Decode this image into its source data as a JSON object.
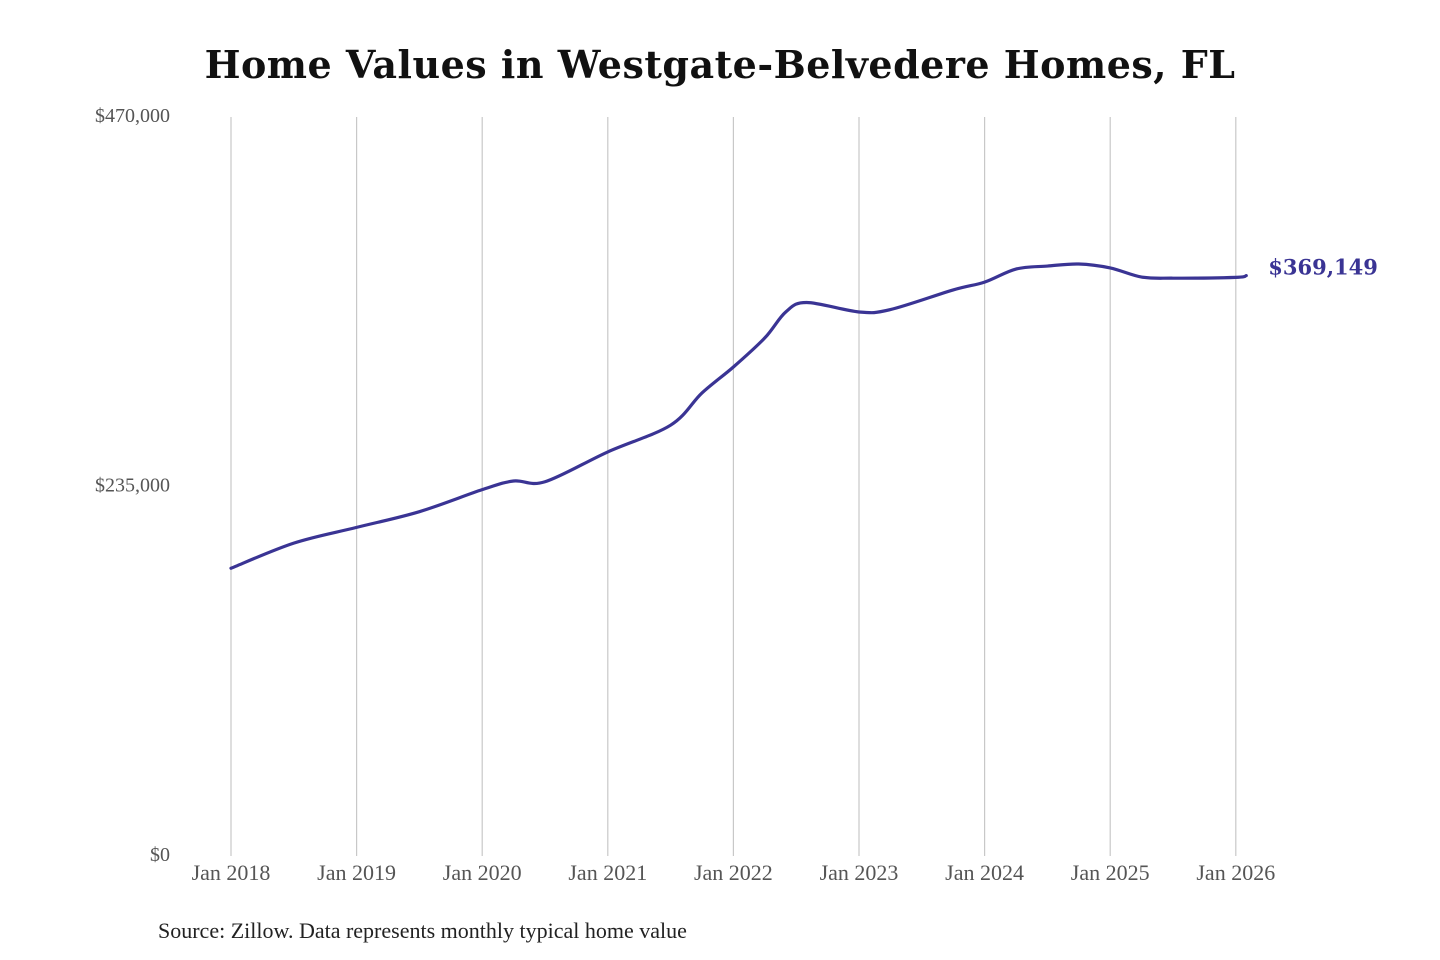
{
  "chart_data": {
    "type": "line",
    "title": "Home Values in Westgate-Belvedere Homes, FL",
    "xlabel": "",
    "ylabel": "",
    "ylim": [
      0,
      470000
    ],
    "y_ticks": [
      "$0",
      "$235,000",
      "$470,000"
    ],
    "y_tick_values": [
      0,
      235000,
      470000
    ],
    "x_ticks": [
      "Jan 2018",
      "Jan 2019",
      "Jan 2020",
      "Jan 2021",
      "Jan 2022",
      "Jan 2023",
      "Jan 2024",
      "Jan 2025",
      "Jan 2026"
    ],
    "grid": "vertical",
    "line_color": "#3a3494",
    "end_label": "$369,149",
    "series": [
      {
        "x": [
          "2018-01",
          "2018-07",
          "2019-01",
          "2019-07",
          "2020-01",
          "2020-04",
          "2020-07",
          "2021-01",
          "2021-07",
          "2021-10",
          "2022-01",
          "2022-04",
          "2022-06",
          "2022-08",
          "2023-01",
          "2023-04",
          "2023-10",
          "2024-01",
          "2024-04",
          "2024-07",
          "2024-10",
          "2025-01",
          "2025-04",
          "2025-07",
          "2026-01",
          "2026-02"
        ],
        "y": [
          183000,
          199000,
          209000,
          219000,
          233000,
          238500,
          238000,
          257000,
          274000,
          294500,
          311000,
          329500,
          346000,
          352000,
          346000,
          347500,
          360000,
          365000,
          373300,
          375200,
          376500,
          374000,
          368200,
          367500,
          368000,
          369149
        ]
      }
    ]
  },
  "source": "Source: Zillow. Data represents monthly typical home value"
}
